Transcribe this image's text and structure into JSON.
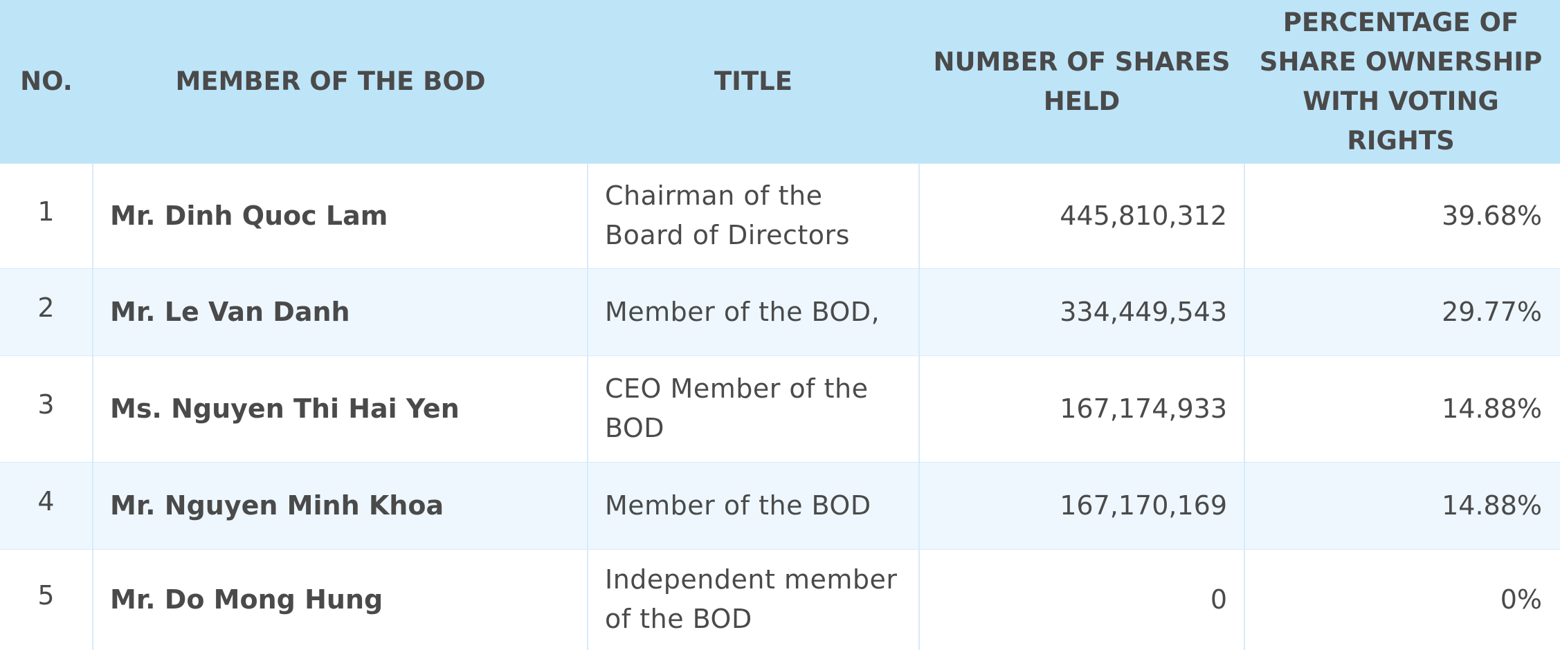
{
  "table": {
    "headers": {
      "no": "NO.",
      "member": "MEMBER OF THE BOD",
      "title": "TITLE",
      "shares": "NUMBER OF SHARES HELD",
      "pct": "PERCENTAGE OF SHARE OWNERSHIP WITH VOTING RIGHTS"
    },
    "rows": [
      {
        "no": "1",
        "member": "Mr. Dinh Quoc Lam",
        "title": "Chairman of the Board of Directors",
        "shares": "445,810,312",
        "pct": "39.68%"
      },
      {
        "no": "2",
        "member": "Mr. Le Van Danh",
        "title": "Member of the BOD,",
        "shares": "334,449,543",
        "pct": "29.77%"
      },
      {
        "no": "3",
        "member": "Ms. Nguyen Thi Hai Yen",
        "title": "CEO Member of the BOD",
        "shares": "167,174,933",
        "pct": "14.88%"
      },
      {
        "no": "4",
        "member": "Mr. Nguyen Minh Khoa",
        "title": "Member of the BOD",
        "shares": "167,170,169",
        "pct": "14.88%"
      },
      {
        "no": "5",
        "member": "Mr. Do Mong Hung",
        "title": "Independent member of the BOD",
        "shares": "0",
        "pct": "0%"
      }
    ]
  },
  "colors": {
    "header_background": "#bee4f8",
    "stripe_background": "#eef7fe",
    "text": "#4a4a4a",
    "grid": "#d6ebfa"
  }
}
